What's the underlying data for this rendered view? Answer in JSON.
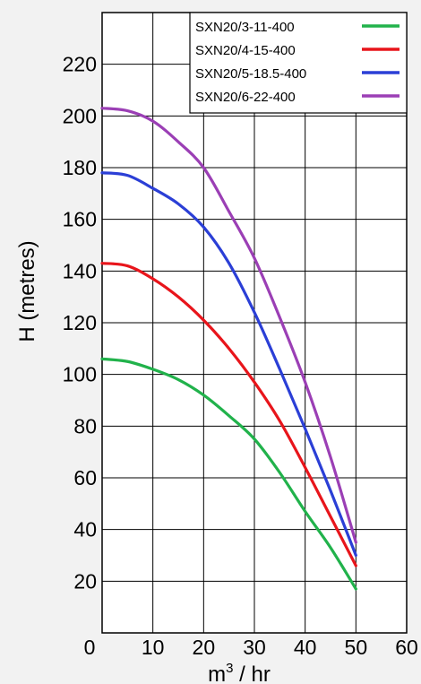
{
  "chart_data": {
    "type": "line",
    "xlabel": "m³ / hr",
    "ylabel": "H (metres)",
    "xlim": [
      0,
      60
    ],
    "ylim": [
      0,
      240
    ],
    "x_ticks": [
      0,
      10,
      20,
      30,
      40,
      50,
      60
    ],
    "y_ticks": [
      20,
      40,
      60,
      80,
      100,
      120,
      140,
      160,
      180,
      200,
      220
    ],
    "grid": true,
    "legend_position": "top-right",
    "series": [
      {
        "name": "SXN20/3-11-400",
        "color": "#21b24b",
        "x": [
          0,
          5,
          10,
          15,
          20,
          25,
          30,
          35,
          40,
          45,
          50
        ],
        "y": [
          106,
          105,
          102,
          98,
          92,
          84,
          75,
          62,
          47,
          33,
          17
        ]
      },
      {
        "name": "SXN20/4-15-400",
        "color": "#e8151b",
        "x": [
          0,
          5,
          10,
          15,
          20,
          25,
          30,
          35,
          40,
          45,
          50
        ],
        "y": [
          143,
          142,
          137,
          130,
          121,
          110,
          97,
          82,
          64,
          45,
          26
        ]
      },
      {
        "name": "SXN20/5-18.5-400",
        "color": "#2b3fd6",
        "x": [
          0,
          5,
          10,
          15,
          20,
          25,
          30,
          35,
          40,
          45,
          50
        ],
        "y": [
          178,
          177,
          172,
          166,
          157,
          143,
          124,
          102,
          79,
          55,
          30
        ]
      },
      {
        "name": "SXN20/6-22-400",
        "color": "#9b3fb5",
        "x": [
          0,
          5,
          10,
          15,
          20,
          25,
          30,
          35,
          40,
          45,
          50
        ],
        "y": [
          203,
          202,
          198,
          190,
          180,
          163,
          145,
          122,
          97,
          68,
          35
        ]
      }
    ]
  }
}
